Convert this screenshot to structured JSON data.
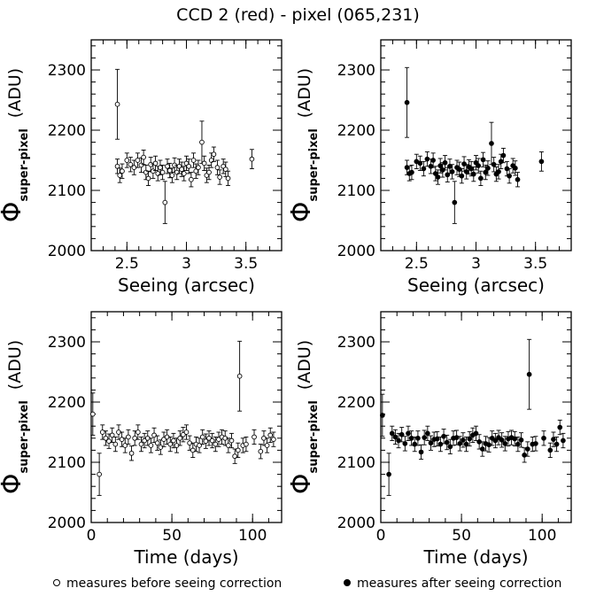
{
  "title": "CCD 2 (red) - pixel (065,231)",
  "legend": {
    "open": "measures before seeing correction",
    "filled": "measures after seeing correction"
  },
  "chart_data": [
    {
      "type": "scatter",
      "panel": "top-left",
      "marker": "open",
      "xlabel": "Seeing (arcsec)",
      "ylabel_symbol": "Φ",
      "ylabel_subscript": "super-pixel",
      "ylabel_unit": "(ADU)",
      "xlim": [
        2.2,
        3.8
      ],
      "ylim": [
        2000,
        2350
      ],
      "xticks": [
        2.5,
        3,
        3.5
      ],
      "xtick_labels": [
        "2.5",
        "3",
        "3.5"
      ],
      "yticks": [
        2000,
        2100,
        2200,
        2300
      ],
      "ytick_labels": [
        "2000",
        "2100",
        "2200",
        "2300"
      ],
      "points": [
        [
          2.42,
          2243,
          58
        ],
        [
          2.42,
          2140,
          12
        ],
        [
          2.44,
          2125,
          12
        ],
        [
          2.46,
          2132,
          12
        ],
        [
          2.5,
          2150,
          12
        ],
        [
          2.53,
          2143,
          12
        ],
        [
          2.56,
          2138,
          12
        ],
        [
          2.59,
          2150,
          12
        ],
        [
          2.62,
          2142,
          12
        ],
        [
          2.64,
          2155,
          12
        ],
        [
          2.66,
          2130,
          12
        ],
        [
          2.68,
          2120,
          12
        ],
        [
          2.7,
          2143,
          12
        ],
        [
          2.72,
          2132,
          12
        ],
        [
          2.74,
          2145,
          12
        ],
        [
          2.76,
          2128,
          12
        ],
        [
          2.78,
          2138,
          12
        ],
        [
          2.8,
          2130,
          12
        ],
        [
          2.82,
          2080,
          35
        ],
        [
          2.84,
          2140,
          12
        ],
        [
          2.86,
          2133,
          12
        ],
        [
          2.88,
          2125,
          12
        ],
        [
          2.9,
          2142,
          12
        ],
        [
          2.92,
          2130,
          12
        ],
        [
          2.94,
          2140,
          12
        ],
        [
          2.96,
          2135,
          12
        ],
        [
          2.98,
          2128,
          12
        ],
        [
          3.0,
          2145,
          12
        ],
        [
          3.02,
          2140,
          12
        ],
        [
          3.04,
          2118,
          12
        ],
        [
          3.06,
          2150,
          12
        ],
        [
          3.08,
          2132,
          12
        ],
        [
          3.1,
          2138,
          12
        ],
        [
          3.13,
          2180,
          35
        ],
        [
          3.15,
          2145,
          12
        ],
        [
          3.17,
          2125,
          12
        ],
        [
          3.19,
          2130,
          12
        ],
        [
          3.21,
          2150,
          12
        ],
        [
          3.23,
          2160,
          12
        ],
        [
          3.26,
          2138,
          12
        ],
        [
          3.28,
          2122,
          12
        ],
        [
          3.31,
          2140,
          12
        ],
        [
          3.33,
          2135,
          12
        ],
        [
          3.35,
          2120,
          12
        ],
        [
          3.55,
          2152,
          16
        ]
      ]
    },
    {
      "type": "scatter",
      "panel": "top-right",
      "marker": "filled",
      "xlabel": "Seeing (arcsec)",
      "ylabel_symbol": "Φ",
      "ylabel_subscript": "super-pixel",
      "ylabel_unit": "(ADU)",
      "xlim": [
        2.2,
        3.8
      ],
      "ylim": [
        2000,
        2350
      ],
      "xticks": [
        2.5,
        3,
        3.5
      ],
      "xtick_labels": [
        "2.5",
        "3",
        "3.5"
      ],
      "yticks": [
        2000,
        2100,
        2200,
        2300
      ],
      "ytick_labels": [
        "2000",
        "2100",
        "2200",
        "2300"
      ],
      "points": [
        [
          2.42,
          2246,
          58
        ],
        [
          2.42,
          2138,
          12
        ],
        [
          2.44,
          2128,
          12
        ],
        [
          2.46,
          2130,
          12
        ],
        [
          2.5,
          2148,
          12
        ],
        [
          2.53,
          2145,
          12
        ],
        [
          2.56,
          2136,
          12
        ],
        [
          2.59,
          2152,
          12
        ],
        [
          2.62,
          2140,
          12
        ],
        [
          2.64,
          2150,
          12
        ],
        [
          2.66,
          2128,
          12
        ],
        [
          2.68,
          2122,
          12
        ],
        [
          2.7,
          2141,
          12
        ],
        [
          2.72,
          2134,
          12
        ],
        [
          2.74,
          2146,
          12
        ],
        [
          2.76,
          2126,
          12
        ],
        [
          2.78,
          2140,
          12
        ],
        [
          2.8,
          2131,
          12
        ],
        [
          2.82,
          2080,
          35
        ],
        [
          2.84,
          2138,
          12
        ],
        [
          2.86,
          2135,
          12
        ],
        [
          2.88,
          2124,
          12
        ],
        [
          2.9,
          2144,
          12
        ],
        [
          2.92,
          2131,
          12
        ],
        [
          2.94,
          2139,
          12
        ],
        [
          2.96,
          2136,
          12
        ],
        [
          2.98,
          2127,
          12
        ],
        [
          3.0,
          2146,
          12
        ],
        [
          3.02,
          2141,
          12
        ],
        [
          3.04,
          2120,
          12
        ],
        [
          3.06,
          2151,
          12
        ],
        [
          3.08,
          2130,
          12
        ],
        [
          3.1,
          2137,
          12
        ],
        [
          3.13,
          2178,
          35
        ],
        [
          3.15,
          2143,
          12
        ],
        [
          3.17,
          2127,
          12
        ],
        [
          3.19,
          2131,
          12
        ],
        [
          3.21,
          2148,
          12
        ],
        [
          3.23,
          2158,
          12
        ],
        [
          3.26,
          2136,
          12
        ],
        [
          3.28,
          2124,
          12
        ],
        [
          3.31,
          2141,
          12
        ],
        [
          3.33,
          2137,
          12
        ],
        [
          3.35,
          2118,
          12
        ],
        [
          3.55,
          2148,
          16
        ]
      ]
    },
    {
      "type": "scatter",
      "panel": "bottom-left",
      "marker": "open",
      "xlabel": "Time (days)",
      "ylabel_symbol": "Φ",
      "ylabel_subscript": "super-pixel",
      "ylabel_unit": "(ADU)",
      "xlim": [
        0,
        118
      ],
      "ylim": [
        2000,
        2350
      ],
      "xticks": [
        0,
        50,
        100
      ],
      "xtick_labels": [
        "0",
        "50",
        "100"
      ],
      "yticks": [
        2000,
        2100,
        2200,
        2300
      ],
      "ytick_labels": [
        "2000",
        "2100",
        "2200",
        "2300"
      ],
      "points": [
        [
          1,
          2180,
          35
        ],
        [
          5,
          2080,
          35
        ],
        [
          7,
          2150,
          12
        ],
        [
          9,
          2140,
          12
        ],
        [
          11,
          2135,
          12
        ],
        [
          13,
          2145,
          12
        ],
        [
          15,
          2130,
          12
        ],
        [
          17,
          2150,
          12
        ],
        [
          19,
          2138,
          12
        ],
        [
          21,
          2128,
          12
        ],
        [
          23,
          2142,
          12
        ],
        [
          25,
          2115,
          12
        ],
        [
          27,
          2140,
          12
        ],
        [
          29,
          2150,
          12
        ],
        [
          31,
          2130,
          12
        ],
        [
          33,
          2136,
          12
        ],
        [
          35,
          2140,
          12
        ],
        [
          37,
          2128,
          12
        ],
        [
          39,
          2145,
          12
        ],
        [
          41,
          2132,
          12
        ],
        [
          43,
          2125,
          12
        ],
        [
          45,
          2138,
          12
        ],
        [
          47,
          2142,
          12
        ],
        [
          49,
          2130,
          12
        ],
        [
          51,
          2136,
          12
        ],
        [
          53,
          2128,
          12
        ],
        [
          55,
          2140,
          12
        ],
        [
          57,
          2146,
          12
        ],
        [
          59,
          2150,
          12
        ],
        [
          61,
          2132,
          12
        ],
        [
          63,
          2120,
          12
        ],
        [
          65,
          2130,
          12
        ],
        [
          67,
          2128,
          12
        ],
        [
          69,
          2142,
          12
        ],
        [
          71,
          2135,
          12
        ],
        [
          73,
          2140,
          12
        ],
        [
          75,
          2136,
          12
        ],
        [
          77,
          2130,
          12
        ],
        [
          79,
          2138,
          12
        ],
        [
          81,
          2142,
          12
        ],
        [
          83,
          2140,
          12
        ],
        [
          85,
          2128,
          12
        ],
        [
          87,
          2136,
          12
        ],
        [
          89,
          2110,
          12
        ],
        [
          91,
          2120,
          12
        ],
        [
          92,
          2243,
          58
        ],
        [
          94,
          2128,
          12
        ],
        [
          96,
          2130,
          12
        ],
        [
          101,
          2142,
          12
        ],
        [
          105,
          2118,
          12
        ],
        [
          107,
          2140,
          12
        ],
        [
          109,
          2128,
          12
        ],
        [
          111,
          2145,
          12
        ],
        [
          113,
          2138,
          12
        ]
      ]
    },
    {
      "type": "scatter",
      "panel": "bottom-right",
      "marker": "filled",
      "xlabel": "Time (days)",
      "ylabel_symbol": "Φ",
      "ylabel_subscript": "super-pixel",
      "ylabel_unit": "(ADU)",
      "xlim": [
        0,
        118
      ],
      "ylim": [
        2000,
        2350
      ],
      "xticks": [
        0,
        50,
        100
      ],
      "xtick_labels": [
        "0",
        "50",
        "100"
      ],
      "yticks": [
        2000,
        2100,
        2200,
        2300
      ],
      "ytick_labels": [
        "2000",
        "2100",
        "2200",
        "2300"
      ],
      "points": [
        [
          1,
          2178,
          35
        ],
        [
          5,
          2080,
          35
        ],
        [
          7,
          2148,
          12
        ],
        [
          9,
          2142,
          12
        ],
        [
          11,
          2136,
          12
        ],
        [
          13,
          2146,
          12
        ],
        [
          15,
          2131,
          12
        ],
        [
          17,
          2148,
          12
        ],
        [
          19,
          2140,
          12
        ],
        [
          21,
          2130,
          12
        ],
        [
          23,
          2140,
          12
        ],
        [
          25,
          2117,
          12
        ],
        [
          27,
          2141,
          12
        ],
        [
          29,
          2148,
          12
        ],
        [
          31,
          2132,
          12
        ],
        [
          33,
          2138,
          12
        ],
        [
          35,
          2139,
          12
        ],
        [
          37,
          2130,
          12
        ],
        [
          39,
          2143,
          12
        ],
        [
          41,
          2133,
          12
        ],
        [
          43,
          2126,
          12
        ],
        [
          45,
          2140,
          12
        ],
        [
          47,
          2141,
          12
        ],
        [
          49,
          2131,
          12
        ],
        [
          51,
          2137,
          12
        ],
        [
          53,
          2130,
          12
        ],
        [
          55,
          2139,
          12
        ],
        [
          57,
          2145,
          12
        ],
        [
          59,
          2148,
          12
        ],
        [
          61,
          2134,
          12
        ],
        [
          63,
          2122,
          12
        ],
        [
          65,
          2131,
          12
        ],
        [
          67,
          2129,
          12
        ],
        [
          69,
          2140,
          12
        ],
        [
          71,
          2136,
          12
        ],
        [
          73,
          2141,
          12
        ],
        [
          75,
          2137,
          12
        ],
        [
          77,
          2131,
          12
        ],
        [
          79,
          2139,
          12
        ],
        [
          81,
          2141,
          12
        ],
        [
          83,
          2139,
          12
        ],
        [
          85,
          2130,
          12
        ],
        [
          87,
          2137,
          12
        ],
        [
          89,
          2112,
          12
        ],
        [
          91,
          2122,
          12
        ],
        [
          92,
          2246,
          58
        ],
        [
          94,
          2130,
          12
        ],
        [
          96,
          2131,
          12
        ],
        [
          101,
          2140,
          12
        ],
        [
          105,
          2120,
          12
        ],
        [
          107,
          2138,
          12
        ],
        [
          109,
          2130,
          12
        ],
        [
          111,
          2158,
          12
        ],
        [
          113,
          2136,
          12
        ]
      ]
    }
  ]
}
